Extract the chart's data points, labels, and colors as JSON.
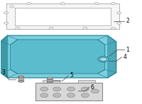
{
  "bg_color": "#ffffff",
  "pan_color": "#7ecfde",
  "pan_inner_color": "#5bbcce",
  "pan_edge_color": "#2a7a8a",
  "pan_dark_color": "#4aaabb",
  "gasket_color": "#f0f0f0",
  "gasket_edge_color": "#999999",
  "module_color": "#d8d8d8",
  "module_edge_color": "#777777",
  "bolt_color": "#cccccc",
  "bolt_edge_color": "#666666",
  "plug_color": "#7ecfde",
  "plug_inner_color": "#aaddee",
  "line_color": "#444444",
  "label_color": "#000000",
  "label_fontsize": 5.5
}
